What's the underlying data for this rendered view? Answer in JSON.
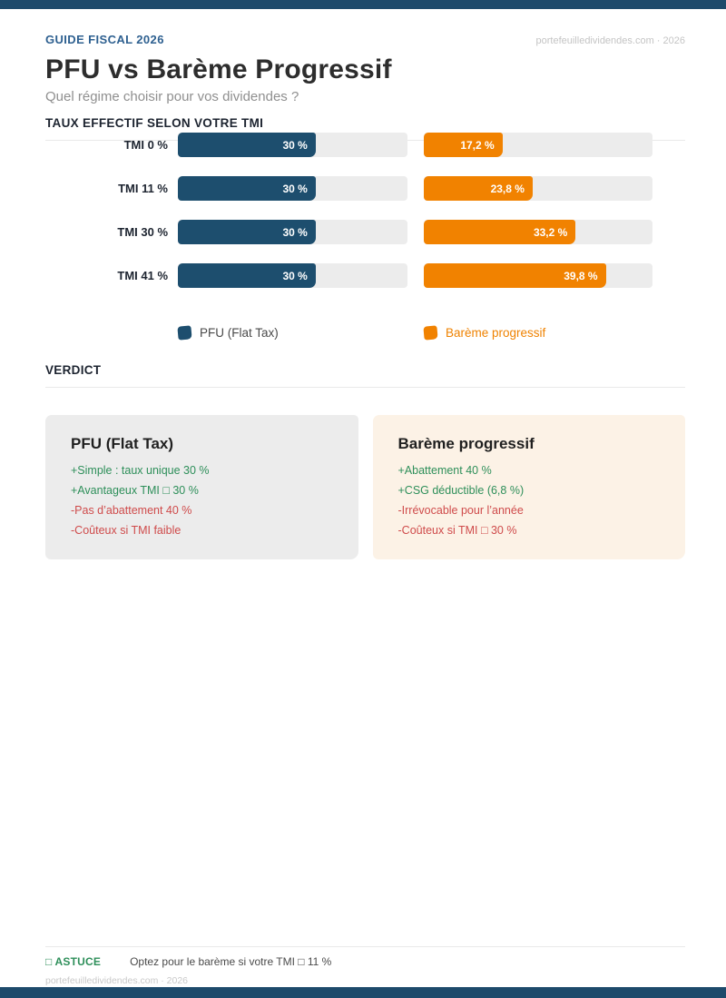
{
  "colors": {
    "band_navy": "#1d4a6b",
    "bar_navy": "#1d4e6e",
    "bar_orange": "#f18200",
    "track_gray": "#ececec",
    "green": "#2e8f5a",
    "red": "#cf4b4b",
    "card_gray": "#ececec",
    "card_cream": "#fcf2e6"
  },
  "header": {
    "kicker": "GUIDE FISCAL 2026",
    "meta": "portefeuilledividendes.com · 2026",
    "title": "PFU vs Barème Progressif",
    "subtitle": "Quel régime choisir pour vos dividendes ?"
  },
  "chart_data": {
    "type": "bar",
    "orientation": "horizontal",
    "title": "TAUX EFFECTIF SELON VOTRE TMI",
    "categories": [
      "TMI 0 %",
      "TMI 11 %",
      "TMI 30 %",
      "TMI 41 %"
    ],
    "xlim": [
      0,
      50
    ],
    "grid": false,
    "legend_position": "bottom",
    "series": [
      {
        "name": "PFU (Flat Tax)",
        "color": "#1d4e6e",
        "values": [
          30,
          30,
          30,
          30
        ],
        "labels": [
          "30 %",
          "30 %",
          "30 %",
          "30 %"
        ]
      },
      {
        "name": "Barème progressif",
        "color": "#f18200",
        "values": [
          17.2,
          23.8,
          33.2,
          39.8
        ],
        "labels": [
          "17,2 %",
          "23,8 %",
          "33,2 %",
          "39,8 %"
        ]
      }
    ]
  },
  "verdict": {
    "section_title": "VERDICT",
    "cards": [
      {
        "title": "PFU (Flat Tax)",
        "items": [
          {
            "text": "+Simple : taux unique 30 %",
            "tone": "pro"
          },
          {
            "text": "+Avantageux TMI □ 30 %",
            "tone": "pro"
          },
          {
            "text": "-Pas d’abattement 40 %",
            "tone": "con"
          },
          {
            "text": "-Coûteux si TMI faible",
            "tone": "con"
          }
        ]
      },
      {
        "title": "Barème progressif",
        "items": [
          {
            "text": "+Abattement 40 %",
            "tone": "pro"
          },
          {
            "text": "+CSG déductible (6,8 %)",
            "tone": "pro"
          },
          {
            "text": "-Irrévocable pour l’année",
            "tone": "con"
          },
          {
            "text": "-Coûteux si TMI □ 30 %",
            "tone": "con"
          }
        ]
      }
    ]
  },
  "footer": {
    "tip_label": "□ ASTUCE",
    "tip_text": "Optez pour le barème si votre TMI □ 11 %",
    "site": "portefeuilledividendes.com · 2026"
  }
}
